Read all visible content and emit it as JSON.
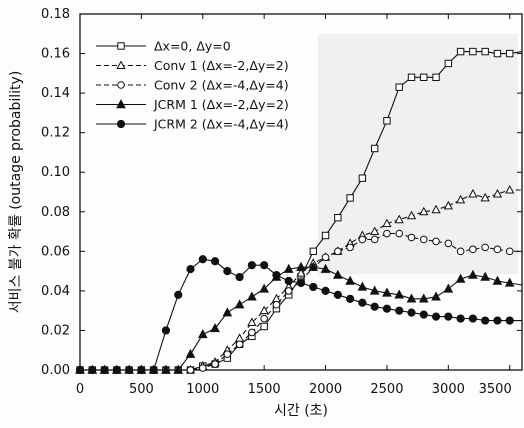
{
  "chart_data": {
    "type": "line",
    "title": "",
    "xlabel": "시간 (초)",
    "ylabel": "서비스 불가 확률 (outage probability)",
    "xlim": [
      0,
      3600
    ],
    "ylim": [
      0,
      0.18
    ],
    "x_ticks": [
      "0",
      "500",
      "1000",
      "1500",
      "2000",
      "2500",
      "3000",
      "3500"
    ],
    "y_ticks": [
      "0.00",
      "0.02",
      "0.04",
      "0.06",
      "0.08",
      "0.10",
      "0.12",
      "0.14",
      "0.16",
      "0.18"
    ],
    "grid": false,
    "legend_position": "top-left",
    "x": [
      0,
      100,
      200,
      300,
      400,
      500,
      600,
      700,
      800,
      900,
      1000,
      1100,
      1200,
      1300,
      1400,
      1500,
      1600,
      1700,
      1800,
      1900,
      2000,
      2100,
      2200,
      2300,
      2400,
      2500,
      2600,
      2700,
      2800,
      2900,
      3000,
      3100,
      3200,
      3300,
      3400,
      3500,
      3600
    ],
    "series": [
      {
        "name": "Δx=0, Δy=0",
        "marker": "open-square",
        "line": "solid",
        "color": "#111111",
        "values": [
          0,
          0,
          0,
          0,
          0,
          0,
          0,
          0,
          0,
          0,
          0.002,
          0.003,
          0.006,
          0.013,
          0.017,
          0.022,
          0.031,
          0.038,
          0.047,
          0.06,
          0.068,
          0.077,
          0.087,
          0.097,
          0.112,
          0.126,
          0.143,
          0.148,
          0.148,
          0.148,
          0.155,
          0.161,
          0.161,
          0.161,
          0.16,
          0.16,
          0.161
        ]
      },
      {
        "name": "Conv 1 (Δx=-2,Δy=2)",
        "marker": "open-triangle",
        "line": "dashed",
        "color": "#111111",
        "values": [
          0,
          0,
          0,
          0,
          0,
          0,
          0,
          0,
          0,
          0,
          0.002,
          0.004,
          0.01,
          0.016,
          0.024,
          0.03,
          0.036,
          0.042,
          0.049,
          0.054,
          0.057,
          0.06,
          0.064,
          0.068,
          0.07,
          0.074,
          0.076,
          0.078,
          0.08,
          0.081,
          0.083,
          0.086,
          0.089,
          0.087,
          0.089,
          0.091,
          0.091
        ]
      },
      {
        "name": "Conv 2 (Δx=-4,Δy=4)",
        "marker": "open-circle",
        "line": "dashed",
        "color": "#111111",
        "values": [
          0,
          0,
          0,
          0,
          0,
          0,
          0,
          0,
          0,
          0,
          0.001,
          0.003,
          0.008,
          0.013,
          0.019,
          0.026,
          0.033,
          0.04,
          0.045,
          0.052,
          0.057,
          0.06,
          0.062,
          0.066,
          0.066,
          0.069,
          0.069,
          0.067,
          0.066,
          0.065,
          0.064,
          0.06,
          0.061,
          0.062,
          0.061,
          0.06,
          0.06
        ]
      },
      {
        "name": "JCRM 1 (Δx=-2,Δy=2)",
        "marker": "filled-triangle",
        "line": "solid",
        "color": "#111111",
        "values": [
          0,
          0,
          0,
          0,
          0,
          0,
          0,
          0,
          0,
          0.008,
          0.018,
          0.021,
          0.029,
          0.033,
          0.037,
          0.041,
          0.047,
          0.051,
          0.052,
          0.052,
          0.051,
          0.048,
          0.045,
          0.042,
          0.04,
          0.039,
          0.038,
          0.036,
          0.036,
          0.037,
          0.041,
          0.046,
          0.048,
          0.047,
          0.045,
          0.044,
          0.043
        ]
      },
      {
        "name": "JCRM 2 (Δx=-4,Δy=4)",
        "marker": "filled-circle",
        "line": "solid",
        "color": "#111111",
        "values": [
          0,
          0,
          0,
          0,
          0,
          0,
          0,
          0.02,
          0.038,
          0.051,
          0.056,
          0.055,
          0.05,
          0.047,
          0.053,
          0.053,
          0.048,
          0.045,
          0.044,
          0.042,
          0.04,
          0.038,
          0.036,
          0.034,
          0.032,
          0.031,
          0.03,
          0.029,
          0.028,
          0.027,
          0.027,
          0.026,
          0.026,
          0.025,
          0.025,
          0.025,
          0.025
        ]
      }
    ]
  }
}
